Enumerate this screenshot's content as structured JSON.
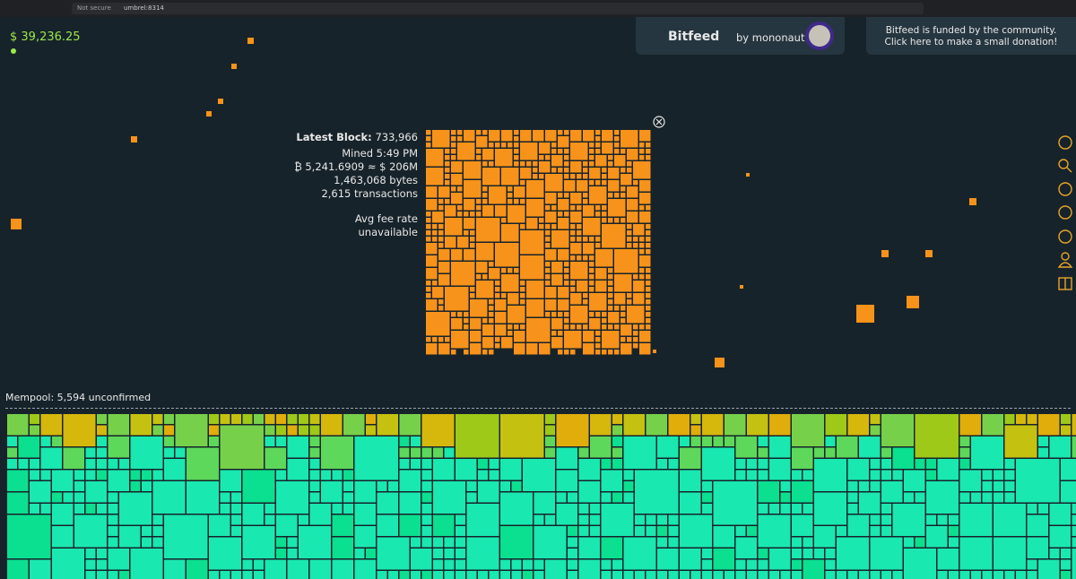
{
  "browser": {
    "security": "Not secure",
    "url": "umbrel:8314"
  },
  "price": "$ 39,236.25",
  "header": {
    "app": "Bitfeed",
    "author": "by mononaut"
  },
  "donation": {
    "line1": "Bitfeed is funded by the community.",
    "line2": "Click here to make a small donation!"
  },
  "block": {
    "label": "Latest Block:",
    "height": "733,966",
    "mined": "Mined 5:49 PM",
    "value": "₿ 5,241.6909 ≈ $ 206M",
    "size": "1,463,068 bytes",
    "transactions": "2,615 transactions",
    "fee_label": "Avg fee rate",
    "fee_value": "unavailable"
  },
  "mempool": {
    "label": "Mempool: 5,594 unconfirmed"
  }
}
